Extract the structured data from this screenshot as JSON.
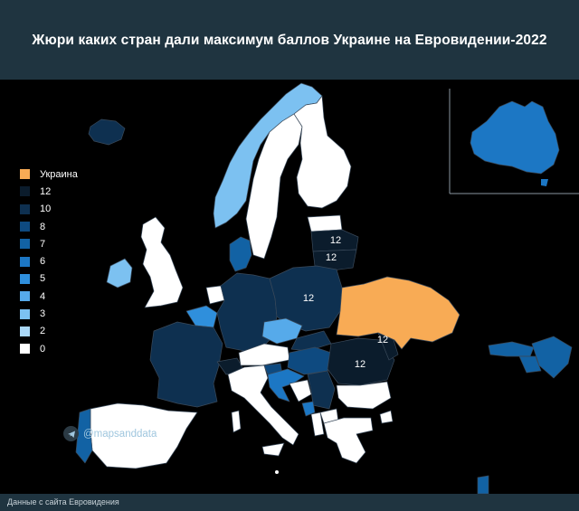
{
  "title": "Жюри каких стран дали максимум баллов Украине на Евровидении-2022",
  "footer": "Данные с сайта Евровидения",
  "handle": "@mapsanddata",
  "colors": {
    "background": "#000000",
    "header_bg": "#1f3440",
    "ukraine": "#f8ab55",
    "p12": "#0b1c2c",
    "p10": "#0e3050",
    "p8": "#0e4a80",
    "p7": "#1262a4",
    "p6": "#1c77c4",
    "p5": "#2f8fdc",
    "p4": "#56aaea",
    "p3": "#7cc1f1",
    "p2": "#a9d7f6",
    "p0": "#ffffff",
    "border": "#39495a"
  },
  "legend": [
    {
      "label": "Украина",
      "key": "ukraine"
    },
    {
      "label": "12",
      "key": "p12"
    },
    {
      "label": "10",
      "key": "p10"
    },
    {
      "label": "8",
      "key": "p8"
    },
    {
      "label": "7",
      "key": "p7"
    },
    {
      "label": "6",
      "key": "p6"
    },
    {
      "label": "5",
      "key": "p5"
    },
    {
      "label": "4",
      "key": "p4"
    },
    {
      "label": "3",
      "key": "p3"
    },
    {
      "label": "2",
      "key": "p2"
    },
    {
      "label": "0",
      "key": "p0"
    }
  ],
  "map_labels": [
    "12",
    "12",
    "12",
    "12",
    "12"
  ]
}
